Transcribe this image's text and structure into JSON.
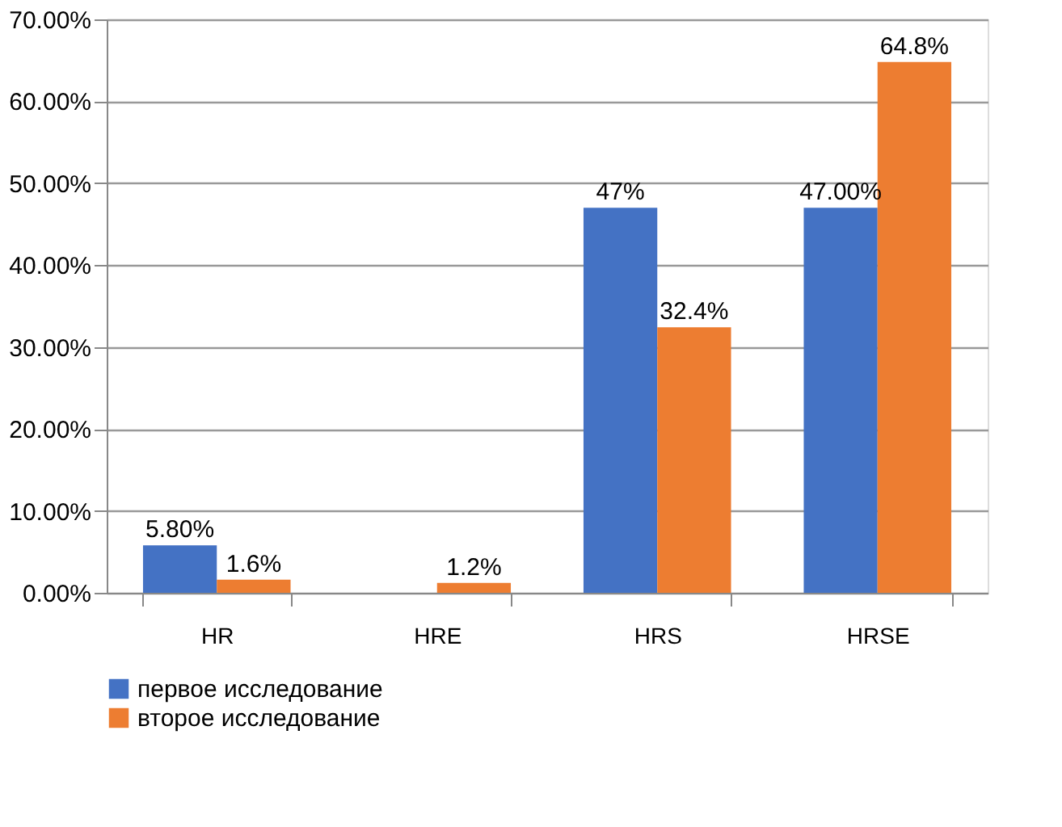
{
  "chart_data": {
    "type": "bar",
    "categories": [
      "HR",
      "HRE",
      "HRS",
      "HRSE"
    ],
    "series": [
      {
        "name": "первое исследование",
        "color": "#4472c4",
        "values": [
          5.8,
          null,
          47,
          47
        ],
        "value_labels": [
          "5.80%",
          null,
          "47%",
          "47.00%"
        ]
      },
      {
        "name": "второе исследование",
        "color": "#ed7d31",
        "values": [
          1.6,
          1.2,
          32.4,
          64.8
        ],
        "value_labels": [
          "1.6%",
          "1.2%",
          "32.4%",
          "64.8%"
        ]
      }
    ],
    "ylim": [
      0,
      70
    ],
    "yticks": [
      {
        "value": 0,
        "label": "0.00%"
      },
      {
        "value": 10,
        "label": "10.00%"
      },
      {
        "value": 20,
        "label": "20.00%"
      },
      {
        "value": 30,
        "label": "30.00%"
      },
      {
        "value": 40,
        "label": "40.00%"
      },
      {
        "value": 50,
        "label": "50.00%"
      },
      {
        "value": 60,
        "label": "60.00%"
      },
      {
        "value": 70,
        "label": "70.00%"
      }
    ],
    "grid": "y",
    "legend": "bottom"
  }
}
